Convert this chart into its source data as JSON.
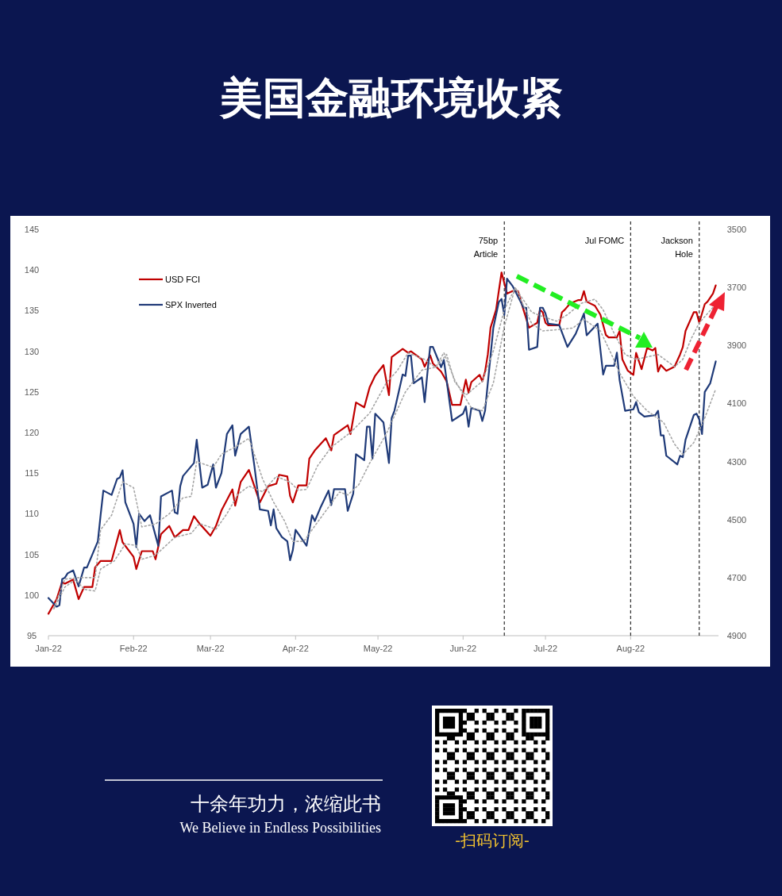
{
  "chart_data": {
    "type": "line",
    "title": "美国金融环境收紧",
    "xlim": [
      "2022-01-01",
      "2022-09-02"
    ],
    "xticks": [
      {
        "value": "2022-01-01",
        "label": "Jan-22"
      },
      {
        "value": "2022-02-01",
        "label": "Feb-22"
      },
      {
        "value": "2022-03-01",
        "label": "Mar-22"
      },
      {
        "value": "2022-04-01",
        "label": "Apr-22"
      },
      {
        "value": "2022-05-01",
        "label": "May-22"
      },
      {
        "value": "2022-06-01",
        "label": "Jun-22"
      },
      {
        "value": "2022-07-01",
        "label": "Jul-22"
      },
      {
        "value": "2022-08-01",
        "label": "Aug-22"
      }
    ],
    "ylim": [
      95,
      145
    ],
    "yticks": [
      95,
      100,
      105,
      110,
      115,
      120,
      125,
      130,
      135,
      140,
      145
    ],
    "y2lim": [
      4900,
      3500
    ],
    "y2ticks": [
      3500,
      3700,
      3900,
      4100,
      4300,
      4500,
      4700,
      4900
    ],
    "legend": "top left",
    "series": [
      {
        "name": "USD FCI",
        "color": "#c00000",
        "line_style": "solid",
        "x": [
          "2022-01-01",
          "2022-01-04",
          "2022-01-06",
          "2022-01-07",
          "2022-01-10",
          "2022-01-12",
          "2022-01-14",
          "2022-01-17",
          "2022-01-18",
          "2022-01-20",
          "2022-01-24",
          "2022-01-27",
          "2022-01-28",
          "2022-02-01",
          "2022-02-02",
          "2022-02-04",
          "2022-02-08",
          "2022-02-09",
          "2022-02-11",
          "2022-02-14",
          "2022-02-16",
          "2022-02-19",
          "2022-02-21",
          "2022-02-23",
          "2022-02-25",
          "2022-03-01",
          "2022-03-03",
          "2022-03-05",
          "2022-03-09",
          "2022-03-10",
          "2022-03-12",
          "2022-03-15",
          "2022-03-19",
          "2022-03-22",
          "2022-03-25",
          "2022-03-26",
          "2022-03-29",
          "2022-03-30",
          "2022-03-31",
          "2022-04-02",
          "2022-04-05",
          "2022-04-06",
          "2022-04-08",
          "2022-04-12",
          "2022-04-14",
          "2022-04-15",
          "2022-04-20",
          "2022-04-21",
          "2022-04-23",
          "2022-04-26",
          "2022-04-28",
          "2022-04-30",
          "2022-05-03",
          "2022-05-05",
          "2022-05-06",
          "2022-05-10",
          "2022-05-12",
          "2022-05-13",
          "2022-05-17",
          "2022-05-18",
          "2022-05-20",
          "2022-05-21",
          "2022-05-24",
          "2022-05-26",
          "2022-05-28",
          "2022-05-31",
          "2022-06-02",
          "2022-06-03",
          "2022-06-04",
          "2022-06-07",
          "2022-06-08",
          "2022-06-09",
          "2022-06-10",
          "2022-06-11",
          "2022-06-13",
          "2022-06-15",
          "2022-06-17",
          "2022-06-19",
          "2022-06-21",
          "2022-06-23",
          "2022-06-25",
          "2022-06-28",
          "2022-06-29",
          "2022-06-30",
          "2022-07-01",
          "2022-07-02",
          "2022-07-06",
          "2022-07-07",
          "2022-07-08",
          "2022-07-10",
          "2022-07-13",
          "2022-07-14",
          "2022-07-15",
          "2022-07-16",
          "2022-07-19",
          "2022-07-21",
          "2022-07-23",
          "2022-07-24",
          "2022-07-27",
          "2022-07-28",
          "2022-07-29",
          "2022-07-31",
          "2022-08-02",
          "2022-08-03",
          "2022-08-05",
          "2022-08-07",
          "2022-08-09",
          "2022-08-10",
          "2022-08-11",
          "2022-08-12",
          "2022-08-14",
          "2022-08-17",
          "2022-08-19",
          "2022-08-20",
          "2022-08-21",
          "2022-08-24",
          "2022-08-25",
          "2022-08-26",
          "2022-08-28",
          "2022-08-29",
          "2022-08-31",
          "2022-09-01"
        ],
        "values": [
          97.7,
          99.5,
          101.6,
          101.4,
          101.9,
          99.5,
          101.0,
          101.0,
          103.4,
          104.2,
          104.2,
          108.0,
          106.5,
          104.7,
          103.2,
          105.4,
          105.4,
          104.4,
          107.5,
          108.5,
          107.1,
          108.0,
          108.0,
          109.7,
          108.8,
          107.3,
          108.5,
          110.4,
          113.0,
          111.0,
          113.9,
          115.4,
          111.4,
          113.4,
          113.7,
          114.8,
          114.6,
          112.2,
          111.4,
          113.5,
          113.5,
          116.8,
          117.8,
          119.3,
          117.8,
          119.7,
          120.9,
          119.8,
          123.7,
          123.1,
          125.6,
          127.0,
          128.3,
          124.6,
          129.3,
          130.3,
          129.8,
          130.0,
          129.0,
          128.1,
          129.5,
          128.5,
          127.5,
          126.3,
          123.4,
          123.4,
          126.5,
          124.9,
          126.2,
          127.1,
          126.3,
          127.5,
          129.6,
          132.9,
          135.1,
          139.7,
          137.1,
          137.4,
          137.4,
          135.1,
          132.9,
          133.5,
          135.1,
          134.8,
          133.5,
          133.2,
          133.2,
          134.8,
          135.1,
          135.9,
          136.3,
          136.3,
          137.4,
          136.1,
          135.6,
          134.5,
          132.0,
          131.7,
          131.7,
          132.5,
          129.0,
          127.6,
          127.1,
          129.8,
          127.8,
          130.4,
          130.1,
          130.4,
          127.5,
          128.3,
          127.6,
          128.1,
          129.6,
          130.5,
          132.5,
          134.8,
          134.8,
          133.5,
          135.8,
          136.1,
          137.1,
          138.1
        ]
      },
      {
        "name": "SPX Inverted",
        "color": "#1f3a78",
        "line_style": "solid",
        "axis": "y2",
        "x": [
          "2022-01-01",
          "2022-01-04",
          "2022-01-05",
          "2022-01-06",
          "2022-01-07",
          "2022-01-08",
          "2022-01-10",
          "2022-01-12",
          "2022-01-14",
          "2022-01-15",
          "2022-01-19",
          "2022-01-20",
          "2022-01-21",
          "2022-01-24",
          "2022-01-26",
          "2022-01-27",
          "2022-01-28",
          "2022-01-29",
          "2022-02-01",
          "2022-02-02",
          "2022-02-03",
          "2022-02-05",
          "2022-02-07",
          "2022-02-10",
          "2022-02-11",
          "2022-02-15",
          "2022-02-16",
          "2022-02-17",
          "2022-02-18",
          "2022-02-19",
          "2022-02-23",
          "2022-02-24",
          "2022-02-26",
          "2022-02-28",
          "2022-03-02",
          "2022-03-03",
          "2022-03-05",
          "2022-03-07",
          "2022-03-09",
          "2022-03-10",
          "2022-03-12",
          "2022-03-15",
          "2022-03-17",
          "2022-03-19",
          "2022-03-22",
          "2022-03-23",
          "2022-03-24",
          "2022-03-25",
          "2022-03-27",
          "2022-03-29",
          "2022-03-30",
          "2022-03-31",
          "2022-04-01",
          "2022-04-05",
          "2022-04-07",
          "2022-04-08",
          "2022-04-10",
          "2022-04-12",
          "2022-04-13",
          "2022-04-14",
          "2022-04-15",
          "2022-04-19",
          "2022-04-20",
          "2022-04-22",
          "2022-04-23",
          "2022-04-26",
          "2022-04-27",
          "2022-04-28",
          "2022-04-29",
          "2022-04-30",
          "2022-05-03",
          "2022-05-05",
          "2022-05-06",
          "2022-05-07",
          "2022-05-10",
          "2022-05-11",
          "2022-05-12",
          "2022-05-13",
          "2022-05-14",
          "2022-05-17",
          "2022-05-18",
          "2022-05-19",
          "2022-05-20",
          "2022-05-21",
          "2022-05-24",
          "2022-05-25",
          "2022-05-28",
          "2022-06-01",
          "2022-06-02",
          "2022-06-03",
          "2022-06-04",
          "2022-06-07",
          "2022-06-08",
          "2022-06-09",
          "2022-06-12",
          "2022-06-14",
          "2022-06-15",
          "2022-06-16",
          "2022-06-17",
          "2022-06-19",
          "2022-06-22",
          "2022-06-23",
          "2022-06-24",
          "2022-06-25",
          "2022-06-28",
          "2022-06-29",
          "2022-06-30",
          "2022-07-01",
          "2022-07-02",
          "2022-07-06",
          "2022-07-09",
          "2022-07-12",
          "2022-07-15",
          "2022-07-16",
          "2022-07-20",
          "2022-07-21",
          "2022-07-22",
          "2022-07-23",
          "2022-07-26",
          "2022-07-27",
          "2022-07-28",
          "2022-07-30",
          "2022-08-02",
          "2022-08-03",
          "2022-08-04",
          "2022-08-06",
          "2022-08-10",
          "2022-08-11",
          "2022-08-12",
          "2022-08-13",
          "2022-08-14",
          "2022-08-18",
          "2022-08-19",
          "2022-08-20",
          "2022-08-21",
          "2022-08-24",
          "2022-08-25",
          "2022-08-26",
          "2022-08-27",
          "2022-08-28",
          "2022-08-30",
          "2022-09-01"
        ],
        "values": [
          4770,
          4800,
          4795,
          4705,
          4700,
          4685,
          4675,
          4730,
          4665,
          4665,
          4575,
          4485,
          4400,
          4415,
          4360,
          4355,
          4330,
          4440,
          4515,
          4595,
          4480,
          4505,
          4485,
          4590,
          4420,
          4400,
          4475,
          4480,
          4385,
          4350,
          4305,
          4225,
          4390,
          4380,
          4310,
          4390,
          4340,
          4205,
          4175,
          4280,
          4205,
          4180,
          4315,
          4465,
          4470,
          4520,
          4465,
          4530,
          4560,
          4575,
          4640,
          4605,
          4535,
          4590,
          4485,
          4505,
          4460,
          4420,
          4400,
          4450,
          4395,
          4395,
          4470,
          4410,
          4275,
          4295,
          4180,
          4180,
          4290,
          4135,
          4165,
          4305,
          4150,
          4125,
          4000,
          4005,
          3935,
          3935,
          4030,
          4010,
          4095,
          3995,
          3905,
          3905,
          3975,
          3950,
          4160,
          4135,
          4110,
          4180,
          4115,
          4125,
          4160,
          4125,
          3840,
          3750,
          3740,
          3795,
          3670,
          3695,
          3750,
          3770,
          3770,
          3915,
          3905,
          3770,
          3770,
          3790,
          3825,
          3830,
          3905,
          3860,
          3790,
          3865,
          3825,
          3915,
          4000,
          3970,
          3970,
          3925,
          4020,
          4125,
          4120,
          4095,
          4130,
          4145,
          4140,
          4125,
          4210,
          4210,
          4280,
          4310,
          4280,
          4285,
          4225,
          4140,
          4135,
          4155,
          4205,
          4060,
          4030,
          3955
        ]
      },
      {
        "color": "#a6a6a6",
        "line_style": "dotted",
        "x": [
          "2022-01-03",
          "2022-01-07",
          "2022-01-11",
          "2022-01-14",
          "2022-01-18",
          "2022-01-20",
          "2022-01-25",
          "2022-01-29",
          "2022-02-02",
          "2022-02-04",
          "2022-02-09",
          "2022-02-16",
          "2022-02-22",
          "2022-02-25",
          "2022-03-03",
          "2022-03-07",
          "2022-03-11",
          "2022-03-15",
          "2022-03-20",
          "2022-03-25",
          "2022-03-30",
          "2022-04-02",
          "2022-04-05",
          "2022-04-09",
          "2022-04-14",
          "2022-04-21",
          "2022-04-28",
          "2022-05-04",
          "2022-05-08",
          "2022-05-12",
          "2022-05-18",
          "2022-05-22",
          "2022-05-26",
          "2022-05-29",
          "2022-06-02",
          "2022-06-08",
          "2022-06-12",
          "2022-06-16",
          "2022-06-20",
          "2022-06-26",
          "2022-06-29",
          "2022-07-05",
          "2022-07-09",
          "2022-07-14",
          "2022-07-19",
          "2022-07-22",
          "2022-07-26",
          "2022-07-30",
          "2022-08-03",
          "2022-08-07",
          "2022-08-11",
          "2022-08-17",
          "2022-08-20",
          "2022-08-23",
          "2022-08-26",
          "2022-08-31"
        ],
        "values": [
          98.3,
          101.0,
          101.9,
          100.7,
          100.5,
          103.2,
          104.2,
          106.3,
          106.1,
          104.4,
          104.9,
          107.1,
          107.6,
          108.8,
          108.1,
          110.0,
          112.4,
          113.4,
          112.7,
          114.6,
          113.9,
          112.9,
          113.0,
          115.9,
          118.2,
          120.0,
          122.4,
          126.1,
          127.6,
          129.8,
          129.0,
          128.0,
          129.6,
          126.2,
          124.6,
          126.3,
          130.0,
          135.1,
          137.8,
          134.8,
          134.4,
          133.7,
          134.5,
          135.9,
          136.4,
          135.1,
          132.2,
          129.6,
          129.0,
          129.3,
          129.6,
          128.1,
          129.0,
          131.5,
          133.5,
          135.4
        ]
      },
      {
        "color": "#a6a6a6",
        "line_style": "dotted",
        "axis": "y2",
        "x": [
          "2022-01-03",
          "2022-01-07",
          "2022-01-12",
          "2022-01-18",
          "2022-01-20",
          "2022-01-24",
          "2022-01-28",
          "2022-02-01",
          "2022-02-04",
          "2022-02-09",
          "2022-02-14",
          "2022-02-19",
          "2022-02-22",
          "2022-02-24",
          "2022-03-02",
          "2022-03-05",
          "2022-03-10",
          "2022-03-15",
          "2022-03-20",
          "2022-03-24",
          "2022-03-28",
          "2022-03-31",
          "2022-04-04",
          "2022-04-07",
          "2022-04-12",
          "2022-04-17",
          "2022-04-20",
          "2022-04-24",
          "2022-04-28",
          "2022-05-04",
          "2022-05-11",
          "2022-05-17",
          "2022-05-22",
          "2022-05-25",
          "2022-05-29",
          "2022-06-04",
          "2022-06-08",
          "2022-06-12",
          "2022-06-16",
          "2022-06-20",
          "2022-06-26",
          "2022-06-30",
          "2022-07-06",
          "2022-07-11",
          "2022-07-15",
          "2022-07-21",
          "2022-07-25",
          "2022-07-28",
          "2022-08-02",
          "2022-08-07",
          "2022-08-13",
          "2022-08-17",
          "2022-08-20",
          "2022-08-24",
          "2022-08-28",
          "2022-09-01"
        ],
        "values": [
          4805,
          4705,
          4700,
          4700,
          4535,
          4485,
          4370,
          4390,
          4525,
          4515,
          4480,
          4425,
          4420,
          4300,
          4320,
          4275,
          4250,
          4220,
          4360,
          4440,
          4505,
          4575,
          4575,
          4535,
          4470,
          4405,
          4415,
          4380,
          4305,
          4205,
          4060,
          3985,
          3975,
          3925,
          4020,
          4115,
          4125,
          4030,
          3835,
          3700,
          3825,
          3850,
          3845,
          3840,
          3810,
          3850,
          3930,
          3995,
          4075,
          4125,
          4165,
          4240,
          4275,
          4235,
          4150,
          4050
        ]
      }
    ],
    "ref_lines": [
      {
        "axis": "x",
        "value": "2022-06-16",
        "label": "75bp Article",
        "line_style": "dashed",
        "color": "#000000"
      },
      {
        "axis": "x",
        "value": "2022-08-01",
        "label": "Jul FOMC",
        "line_style": "dashed",
        "color": "#000000"
      },
      {
        "axis": "x",
        "value": "2022-08-26",
        "label": "Jackson Hole",
        "line_style": "dashed",
        "color": "#000000"
      }
    ],
    "annotations": [
      "十余年功力，浓缩此书",
      "We Believe in Endless Possibilities",
      "-扫码订阅-"
    ]
  }
}
